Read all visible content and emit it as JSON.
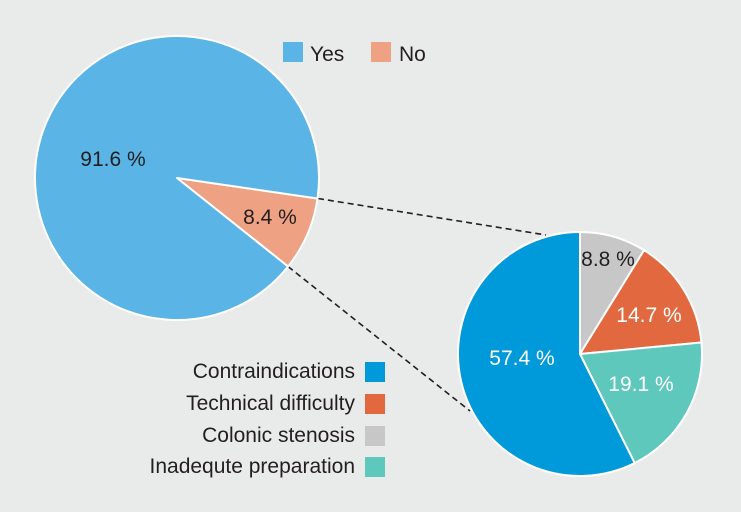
{
  "chart_data": [
    {
      "type": "pie",
      "labels": [
        "Yes",
        "No"
      ],
      "values": [
        91.6,
        8.4
      ],
      "value_labels": [
        "91.6 %",
        "8.4 %"
      ],
      "colors": [
        "#5ab4e6",
        "#eea183"
      ]
    },
    {
      "type": "pie",
      "labels": [
        "Contraindications",
        "Technical difficulty",
        "Colonic stenosis",
        "Inadequte preparation"
      ],
      "values": [
        57.4,
        14.7,
        8.8,
        19.1
      ],
      "value_labels": [
        "57.4 %",
        "14.7 %",
        "8.8 %",
        "19.1 %"
      ],
      "colors": [
        "#0099da",
        "#e2693f",
        "#c7c7c7",
        "#5ec8bd"
      ]
    }
  ],
  "colors": {
    "background": "#e9eaea"
  }
}
